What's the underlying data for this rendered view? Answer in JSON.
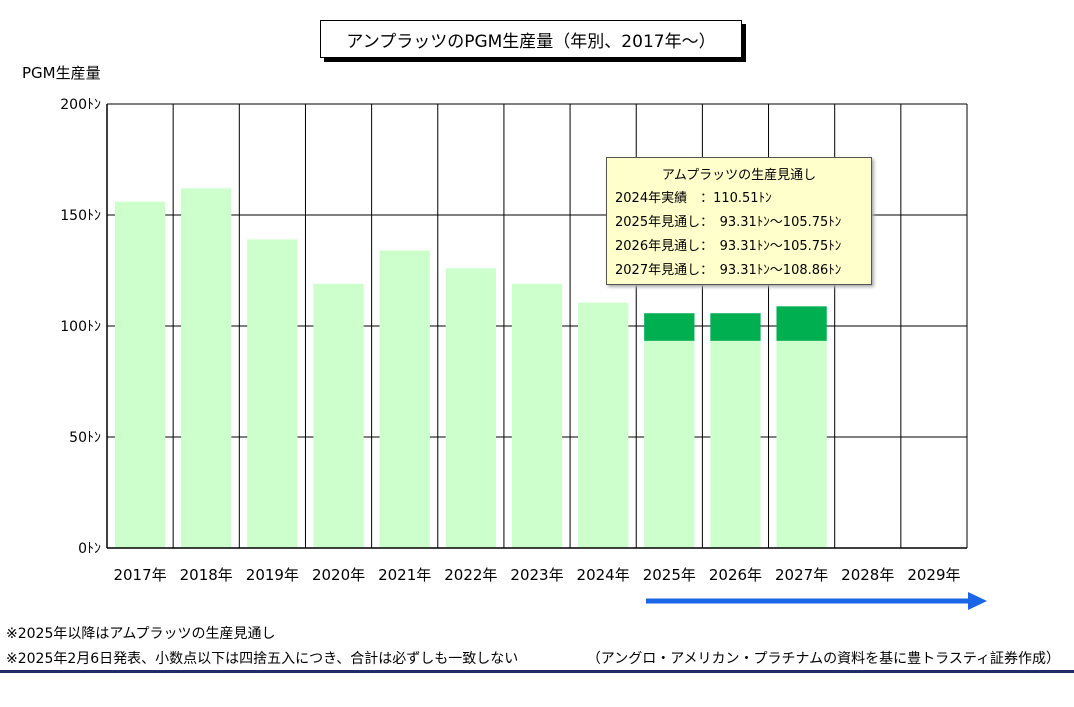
{
  "title": "アンプラッツのPGM生産量（年別、2017年～）",
  "ylabel": "PGM生産量",
  "chart_data": {
    "type": "bar",
    "title": "アンプラッツのPGM生産量（年別、2017年～）",
    "ylabel": "PGM生産量",
    "xlabel": "",
    "ylim": [
      0,
      200
    ],
    "yticks": [
      0,
      50,
      100,
      150,
      200
    ],
    "ytick_labels": [
      "0ﾄﾝ",
      "50ﾄﾝ",
      "100ﾄﾝ",
      "150ﾄﾝ",
      "200ﾄﾝ"
    ],
    "categories": [
      "2017年",
      "2018年",
      "2019年",
      "2020年",
      "2021年",
      "2022年",
      "2023年",
      "2024年",
      "2025年",
      "2026年",
      "2027年",
      "2028年",
      "2029年"
    ],
    "series": [
      {
        "values": [
          156,
          162,
          139,
          119,
          134,
          126,
          119,
          110.51,
          93.31,
          93.31,
          93.31,
          null,
          null
        ],
        "color": "#ccffcc"
      },
      {
        "values": [
          null,
          null,
          null,
          null,
          null,
          null,
          null,
          null,
          12.44,
          12.44,
          15.55,
          null,
          null
        ],
        "color": "#00b050"
      }
    ],
    "grid": true
  },
  "callout": {
    "title": "アムプラッツの生産見通し",
    "rows": [
      "2024年実績　：110.51ﾄﾝ",
      "2025年見通し：　93.31ﾄﾝ～105.75ﾄﾝ",
      "2026年見通し：　93.31ﾄﾝ～105.75ﾄﾝ",
      "2027年見通し：　93.31ﾄﾝ～108.86ﾄﾝ"
    ]
  },
  "notes": [
    "※2025年以降はアムプラッツの生産見通し",
    "※2025年2月6日発表、小数点以下は四捨五入につき、合計は必ずしも一致しない"
  ],
  "source": "（アングロ・アメリカン・プラチナムの資料を基に豊トラスティ証券作成）",
  "colors": {
    "arrow": "#1a66e6",
    "grid": "#000000"
  }
}
